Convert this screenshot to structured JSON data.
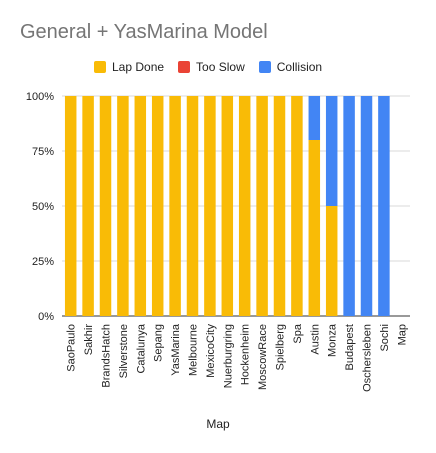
{
  "chart_data": {
    "type": "bar",
    "stacked": "percent",
    "title": "General + YasMarina Model",
    "xlabel": "Map",
    "ylabel": "",
    "ylim": [
      0,
      100
    ],
    "y_ticks": [
      "0%",
      "25%",
      "50%",
      "75%",
      "100%"
    ],
    "legend_position": "top",
    "grid": true,
    "categories": [
      "SaoPaulo",
      "Sakhir",
      "BrandsHatch",
      "Silverstone",
      "Catalunya",
      "Sepang",
      "YasMarina",
      "Melbourne",
      "MexicoCity",
      "Nuerburgring",
      "Hockenheim",
      "MoscowRace",
      "Spielberg",
      "Spa",
      "Austin",
      "Monza",
      "Budapest",
      "Oschersleben",
      "Sochi",
      "Map"
    ],
    "series": [
      {
        "name": "Lap Done",
        "color": "#f9bb06",
        "values": [
          100,
          100,
          100,
          100,
          100,
          100,
          100,
          100,
          100,
          100,
          100,
          100,
          100,
          100,
          80,
          50,
          0,
          0,
          0,
          0
        ]
      },
      {
        "name": "Too Slow",
        "color": "#ea4335",
        "values": [
          0,
          0,
          0,
          0,
          0,
          0,
          0,
          0,
          0,
          0,
          0,
          0,
          0,
          0,
          0,
          0,
          0,
          0,
          0,
          0
        ]
      },
      {
        "name": "Collision",
        "color": "#4285f4",
        "values": [
          0,
          0,
          0,
          0,
          0,
          0,
          0,
          0,
          0,
          0,
          0,
          0,
          0,
          0,
          20,
          50,
          100,
          100,
          100,
          0
        ]
      }
    ]
  }
}
